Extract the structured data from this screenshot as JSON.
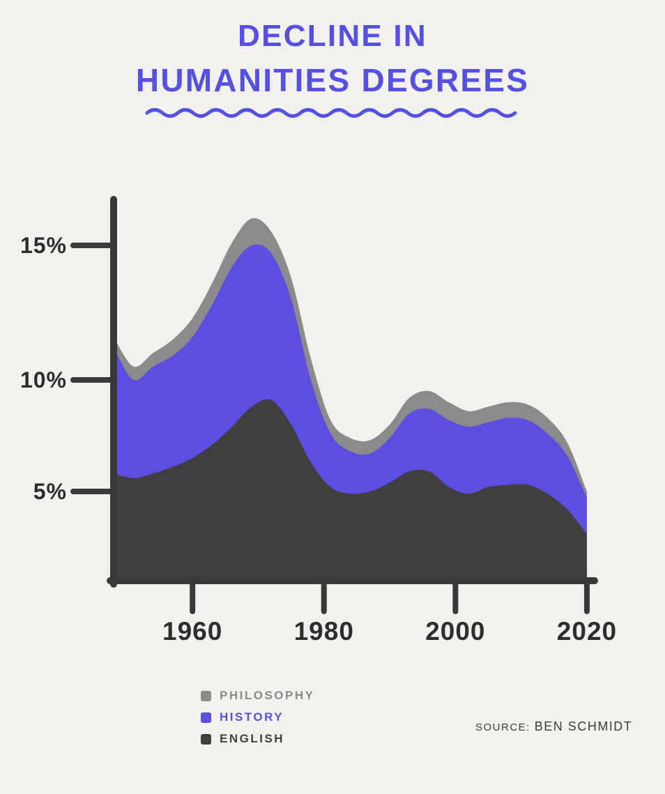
{
  "page": {
    "background_color": "#f2f1ee",
    "title_color": "#5450e3",
    "axis_color": "#3a3839",
    "tick_label_color": "#2e2c2d"
  },
  "title": {
    "line1": "DECLINE IN",
    "line2": "HUMANITIES DEGREES"
  },
  "chart_data": {
    "type": "area",
    "stacked": true,
    "title": "Decline in Humanities Degrees",
    "x": [
      1948,
      1951,
      1954,
      1957,
      1960,
      1963,
      1966,
      1969,
      1972,
      1975,
      1978,
      1981,
      1984,
      1987,
      1990,
      1993,
      1996,
      1999,
      2002,
      2005,
      2008,
      2011,
      2014,
      2017,
      2020
    ],
    "series": [
      {
        "name": "English",
        "color": "#413e3f",
        "values": [
          5.8,
          5.6,
          5.8,
          6.1,
          6.5,
          7.1,
          7.9,
          8.8,
          9.1,
          8.0,
          6.3,
          5.2,
          4.9,
          5.0,
          5.4,
          5.9,
          5.9,
          5.2,
          4.9,
          5.2,
          5.3,
          5.3,
          4.9,
          4.2,
          3.1
        ]
      },
      {
        "name": "History",
        "color": "#5a4fe0",
        "values": [
          5.4,
          4.4,
          4.7,
          4.8,
          5.1,
          5.7,
          6.3,
          6.2,
          5.6,
          5.0,
          3.7,
          2.4,
          1.9,
          1.7,
          2.0,
          2.6,
          2.8,
          3.0,
          3.0,
          2.9,
          3.0,
          2.9,
          2.7,
          2.4,
          1.6
        ]
      },
      {
        "name": "Philosophy",
        "color": "#8b8b8b",
        "values": [
          0.4,
          0.5,
          0.5,
          0.6,
          0.7,
          0.8,
          0.9,
          1.0,
          0.8,
          0.8,
          0.8,
          0.6,
          0.6,
          0.6,
          0.6,
          0.7,
          0.8,
          0.8,
          0.7,
          0.7,
          0.7,
          0.7,
          0.7,
          0.6,
          0.3
        ]
      }
    ],
    "y_ticks": [
      {
        "value": 5,
        "label": "5%"
      },
      {
        "value": 10,
        "label": "10%"
      },
      {
        "value": 15,
        "label": "15%"
      }
    ],
    "x_ticks": [
      {
        "value": 1960,
        "label": "1960"
      },
      {
        "value": 1980,
        "label": "1980"
      },
      {
        "value": 2000,
        "label": "2000"
      },
      {
        "value": 2020,
        "label": "2020"
      }
    ],
    "ylim": [
      0,
      17
    ],
    "grid": false,
    "legend_position": "bottom-left"
  },
  "legend": {
    "items": [
      {
        "label": "PHILOSOPHY",
        "color": "#8b8b8b"
      },
      {
        "label": "HISTORY",
        "color": "#5a4fe0"
      },
      {
        "label": "ENGLISH",
        "color": "#413e3f"
      }
    ]
  },
  "source": {
    "prefix": "SOURCE:",
    "name": "BEN SCHMIDT"
  }
}
